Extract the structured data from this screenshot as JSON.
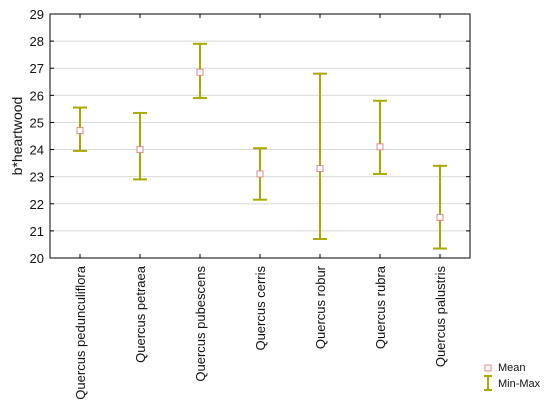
{
  "chart_data": {
    "type": "errorbar",
    "title": "",
    "xlabel": "",
    "ylabel": "b*heartwood",
    "ylim": [
      20,
      29
    ],
    "yticks": [
      20,
      21,
      22,
      23,
      24,
      25,
      26,
      27,
      28,
      29
    ],
    "grid": true,
    "legend_position": "bottom-right",
    "legend": {
      "mean_label": "Mean",
      "range_label": "Min-Max"
    },
    "colors": {
      "bar": "#a8a800",
      "mean_stroke": "#e08a8a",
      "grid": "#d9d9d9",
      "axis": "#000000"
    },
    "categories": [
      "Quercus pedunculiflora",
      "Quercus petraea",
      "Quercus pubescens",
      "Quercus cerris",
      "Quercus robur",
      "Quercus rubra",
      "Quercus palustris"
    ],
    "mean": [
      24.7,
      24.0,
      26.85,
      23.1,
      23.3,
      24.1,
      21.5
    ],
    "min": [
      23.95,
      22.9,
      25.9,
      22.15,
      20.7,
      23.1,
      20.35
    ],
    "max": [
      25.55,
      25.35,
      27.9,
      24.05,
      26.8,
      25.8,
      23.4
    ]
  }
}
